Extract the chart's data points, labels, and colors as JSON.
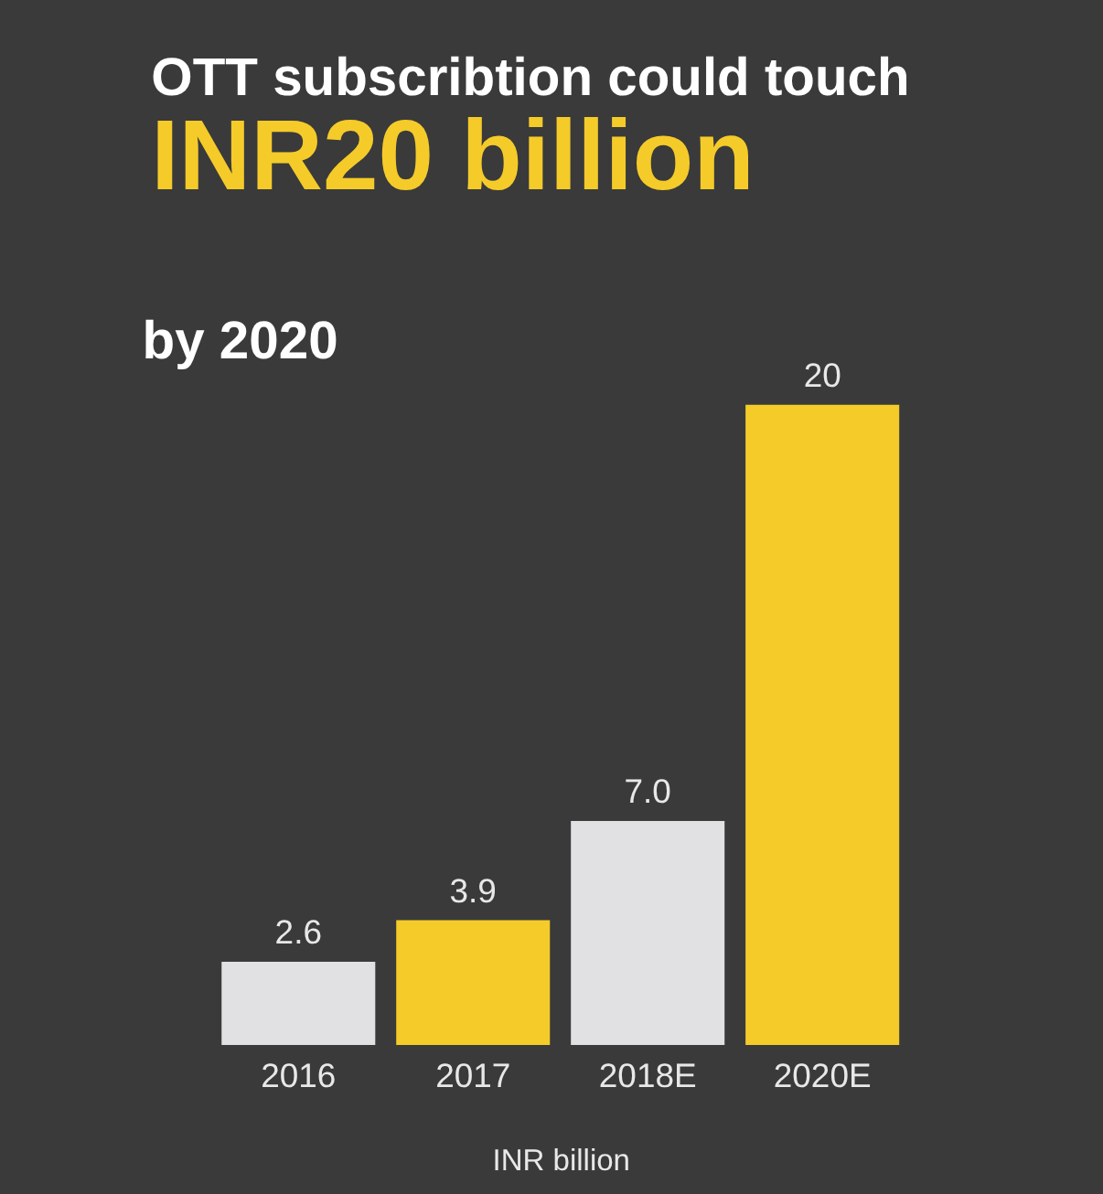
{
  "chart_data": {
    "type": "bar",
    "title": "OTT subscribtion could touch",
    "subtitle": "INR20 billion",
    "annotations": [
      "by 2020"
    ],
    "categories": [
      "2016",
      "2017",
      "2018E",
      "2020E"
    ],
    "values": [
      2.6,
      3.9,
      7.0,
      20
    ],
    "value_labels": [
      "2.6",
      "3.9",
      "7.0",
      "20"
    ],
    "colors": [
      "#e1e1e3",
      "#f5cb2a",
      "#e1e1e3",
      "#f5cb2a"
    ],
    "xlabel": "INR billion",
    "grid": false
  }
}
